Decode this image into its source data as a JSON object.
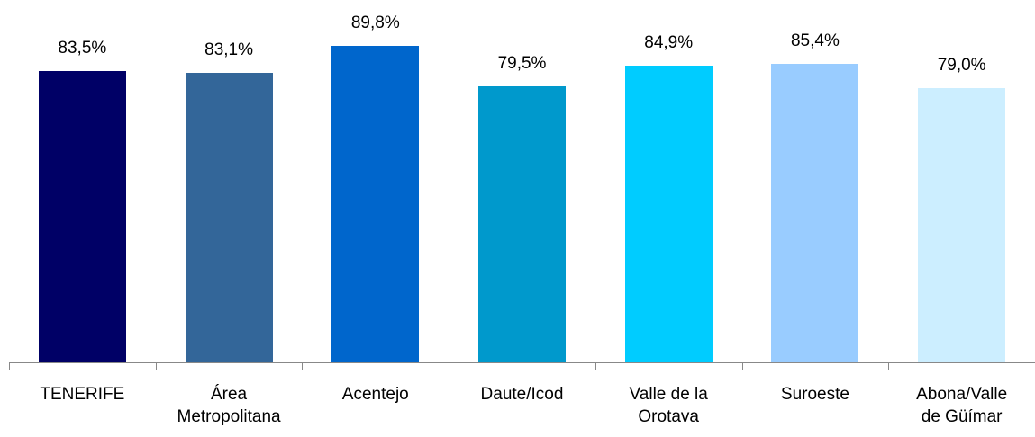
{
  "chart_data": {
    "type": "bar",
    "categories": [
      "TENERIFE",
      "Área Metropolitana",
      "Acentejo",
      "Daute/Icod",
      "Valle de la Orotava",
      "Suroeste",
      "Abona/Valle de Güímar"
    ],
    "values": [
      83.5,
      83.1,
      89.8,
      79.5,
      84.9,
      85.4,
      79.0
    ],
    "value_labels": [
      "83,5%",
      "83,1%",
      "89,8%",
      "79,5%",
      "84,9%",
      "85,4%",
      "79,0%"
    ],
    "colors": [
      "#000066",
      "#336699",
      "#0066cc",
      "#0099cc",
      "#00ccff",
      "#99ccff",
      "#cceeff"
    ],
    "ylim": [
      9,
      100
    ]
  }
}
